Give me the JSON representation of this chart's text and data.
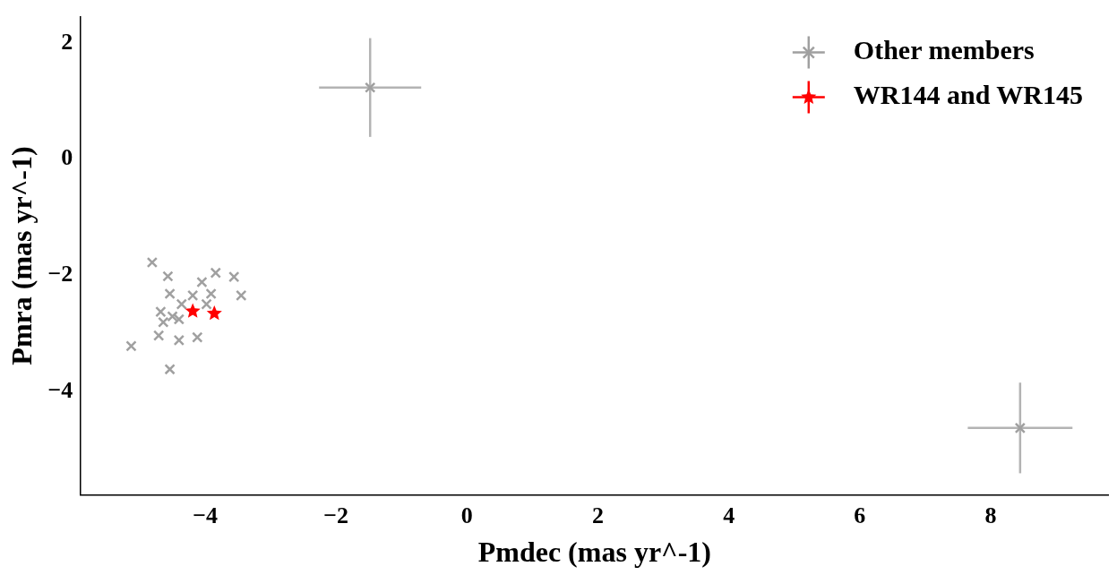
{
  "chart_data": {
    "type": "scatter",
    "xlabel": "Pmdec (mas yr^-1)",
    "ylabel": "Pmra (mas yr^-1)",
    "xlim": [
      -5.9,
      9.8
    ],
    "ylim": [
      -5.78,
      2.45
    ],
    "xticks": [
      -4,
      -2,
      0,
      2,
      4,
      6,
      8
    ],
    "yticks": [
      -4,
      -2,
      0,
      2
    ],
    "grid": false,
    "legend": "top right",
    "series": [
      {
        "name": "Other members",
        "color": "#a0a0a0",
        "marker": "cross",
        "x": [
          -1.48,
          8.45,
          -4.81,
          -4.57,
          -3.84,
          -3.56,
          -4.05,
          -3.45,
          -4.54,
          -4.19,
          -3.91,
          -3.98,
          -4.36,
          -4.68,
          -4.5,
          -4.64,
          -4.4,
          -4.71,
          -4.4,
          -4.12,
          -5.13,
          -4.54
        ],
        "values": [
          1.23,
          -4.63,
          -1.78,
          -2.02,
          -1.96,
          -2.03,
          -2.12,
          -2.35,
          -2.32,
          -2.35,
          -2.32,
          -2.5,
          -2.5,
          -2.63,
          -2.71,
          -2.81,
          -2.76,
          -3.04,
          -3.12,
          -3.07,
          -3.22,
          -3.62
        ],
        "errors": [
          0.85,
          0.78,
          null,
          null,
          null,
          null,
          null,
          null,
          null,
          null,
          null,
          null,
          null,
          null,
          null,
          null,
          null,
          null,
          null,
          null,
          null,
          null
        ],
        "xerrors": [
          0.78,
          0.8,
          null,
          null,
          null,
          null,
          null,
          null,
          null,
          null,
          null,
          null,
          null,
          null,
          null,
          null,
          null,
          null,
          null,
          null,
          null,
          null
        ]
      },
      {
        "name": "WR144 and WR145",
        "color": "#ff0000",
        "marker": "star",
        "x": [
          -4.19,
          -3.86
        ],
        "values": [
          -2.62,
          -2.66
        ]
      }
    ]
  }
}
